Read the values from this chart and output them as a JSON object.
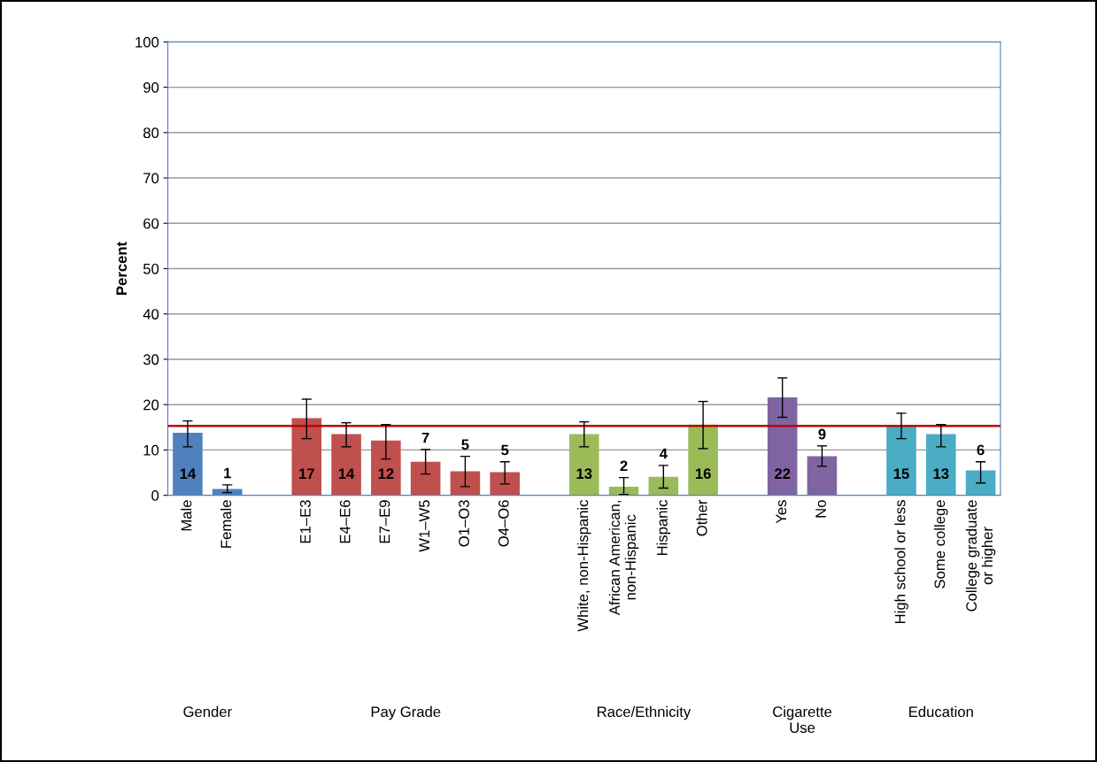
{
  "chart_data": {
    "type": "bar",
    "ylabel": "Percent",
    "categories": [
      "Male",
      "Female",
      null,
      "E1–E3",
      "E4–E6",
      "E7–E9",
      "W1–W5",
      "O1–O3",
      "O4–O6",
      null,
      "White, non-Hispanic",
      "African American,\nnon-Hispanic",
      "Hispanic",
      "Other",
      null,
      "Yes",
      "No",
      null,
      "High school or less",
      "Some college",
      "College graduate\nor higher"
    ],
    "values": [
      13.8,
      1.4,
      null,
      17.0,
      13.5,
      12.1,
      7.4,
      5.3,
      5.1,
      null,
      13.5,
      1.9,
      4.1,
      15.6,
      null,
      21.6,
      8.6,
      null,
      15.4,
      13.5,
      5.5
    ],
    "errors": [
      [
        10.7,
        16.4
      ],
      [
        0.6,
        2.3
      ],
      null,
      [
        12.5,
        21.2
      ],
      [
        10.7,
        16.0
      ],
      [
        8.0,
        15.6
      ],
      [
        4.7,
        10.1
      ],
      [
        1.9,
        8.6
      ],
      [
        2.5,
        7.4
      ],
      null,
      [
        10.7,
        16.2
      ],
      [
        0.2,
        3.9
      ],
      [
        1.6,
        6.6
      ],
      [
        10.3,
        20.7
      ],
      null,
      [
        17.2,
        25.9
      ],
      [
        6.4,
        10.9
      ],
      null,
      [
        12.5,
        18.1
      ],
      [
        10.7,
        15.6
      ],
      [
        2.7,
        7.4
      ]
    ],
    "value_labels": [
      "14",
      "1",
      null,
      "17",
      "14",
      "12",
      "7",
      "5",
      "5",
      null,
      "13",
      "2",
      "4",
      "16",
      null,
      "22",
      "9",
      null,
      "15",
      "13",
      "6"
    ],
    "colors": [
      "#4f81bd",
      "#4f81bd",
      null,
      "#c0504d",
      "#c0504d",
      "#c0504d",
      "#c0504d",
      "#c0504d",
      "#c0504d",
      null,
      "#9bbb59",
      "#9bbb59",
      "#9bbb59",
      "#9bbb59",
      null,
      "#8064a2",
      "#8064a2",
      null,
      "#4bacc6",
      "#4bacc6",
      "#4bacc6"
    ],
    "ylim": [
      0,
      100
    ],
    "yticks": [
      0,
      10,
      20,
      30,
      40,
      50,
      60,
      70,
      80,
      90,
      100
    ],
    "grid": "y",
    "ref_lines": [
      {
        "axis": "y",
        "value": 15.3,
        "color": "#c00000"
      }
    ],
    "annotations": [
      "Gender",
      "Pay Grade",
      "Race/Ethnicity",
      "Cigarette\nUse",
      "Education"
    ]
  }
}
